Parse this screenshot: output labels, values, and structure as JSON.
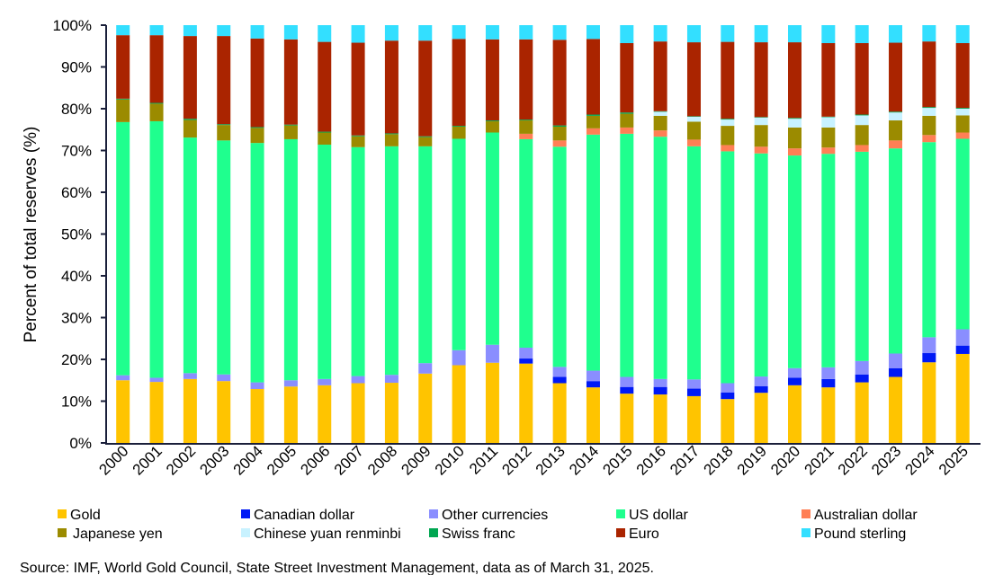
{
  "chart_data": {
    "type": "bar",
    "stacked": true,
    "title": "",
    "xlabel": "",
    "ylabel": "Percent of total reserves (%)",
    "ylim": [
      0,
      100
    ],
    "yticks": [
      "0%",
      "10%",
      "20%",
      "30%",
      "40%",
      "50%",
      "60%",
      "70%",
      "80%",
      "90%",
      "100%"
    ],
    "legend_position": "bottom",
    "categories": [
      "2000",
      "2001",
      "2002",
      "2003",
      "2004",
      "2005",
      "2006",
      "2007",
      "2008",
      "2009",
      "2010",
      "2011",
      "2012",
      "2013",
      "2014",
      "2015",
      "2016",
      "2017",
      "2018",
      "2019",
      "2020",
      "2021",
      "2022",
      "2023",
      "2024",
      "2025"
    ],
    "series": [
      {
        "name": "Gold",
        "color": "#FFC400",
        "values": [
          15.0,
          14.6,
          15.3,
          14.8,
          12.9,
          13.5,
          13.8,
          14.3,
          14.4,
          16.6,
          18.6,
          19.2,
          19.0,
          14.3,
          13.3,
          11.8,
          11.6,
          11.2,
          10.5,
          12.0,
          13.8,
          13.3,
          14.5,
          15.8,
          19.3,
          21.3
        ]
      },
      {
        "name": "Canadian dollar",
        "color": "#0019F5",
        "values": [
          0,
          0,
          0,
          0,
          0,
          0,
          0,
          0,
          0,
          0,
          0,
          0,
          1.2,
          1.5,
          1.5,
          1.6,
          1.8,
          1.8,
          1.6,
          1.6,
          1.8,
          2.0,
          1.9,
          2.1,
          2.2,
          2.0
        ]
      },
      {
        "name": "Other currencies",
        "color": "#8A8EFF",
        "values": [
          1.2,
          1.0,
          1.4,
          1.6,
          1.6,
          1.5,
          1.5,
          1.7,
          1.9,
          2.5,
          3.6,
          4.3,
          2.6,
          2.4,
          2.5,
          2.4,
          1.9,
          2.2,
          2.2,
          2.3,
          2.3,
          2.8,
          3.2,
          3.5,
          3.8,
          3.9
        ]
      },
      {
        "name": "US dollar",
        "color": "#1FFF8E",
        "values": [
          60.6,
          61.4,
          56.4,
          56.0,
          57.3,
          57.7,
          56.1,
          54.8,
          54.7,
          51.9,
          50.6,
          50.8,
          49.9,
          52.7,
          56.5,
          58.2,
          58.0,
          55.8,
          55.5,
          53.4,
          50.9,
          51.1,
          50.1,
          49.1,
          46.7,
          45.6
        ]
      },
      {
        "name": "Australian dollar",
        "color": "#FF7F55",
        "values": [
          0,
          0,
          0,
          0,
          0,
          0,
          0,
          0,
          0,
          0,
          0,
          0,
          1.3,
          1.5,
          1.5,
          1.5,
          1.5,
          1.6,
          1.5,
          1.6,
          1.7,
          1.5,
          1.6,
          1.9,
          1.7,
          1.5
        ]
      },
      {
        "name": "Japanese yen",
        "color": "#9B8B00",
        "values": [
          5.4,
          4.2,
          4.2,
          3.7,
          3.6,
          3.3,
          2.9,
          2.6,
          2.9,
          2.2,
          2.9,
          2.7,
          3.2,
          3.3,
          3.0,
          3.3,
          3.5,
          4.3,
          4.6,
          5.2,
          5.0,
          4.8,
          4.8,
          4.8,
          4.6,
          4.1
        ]
      },
      {
        "name": "Chinese yuan renminbi",
        "color": "#C8F2FF",
        "values": [
          0,
          0,
          0,
          0,
          0,
          0,
          0,
          0,
          0,
          0,
          0,
          0,
          0,
          0,
          0,
          0,
          1.0,
          1.2,
          1.5,
          1.8,
          2.1,
          2.5,
          2.3,
          1.9,
          1.9,
          1.6
        ]
      },
      {
        "name": "Swiss franc",
        "color": "#00A651",
        "values": [
          0.2,
          0.2,
          0.3,
          0.2,
          0.2,
          0.2,
          0.2,
          0.2,
          0.2,
          0.2,
          0.2,
          0.2,
          0.2,
          0.3,
          0.3,
          0.3,
          0.1,
          0.1,
          0.2,
          0.1,
          0.2,
          0.1,
          0.2,
          0.2,
          0.2,
          0.2
        ]
      },
      {
        "name": "Euro",
        "color": "#AA2400",
        "values": [
          15.2,
          16.2,
          19.8,
          21.1,
          21.2,
          20.4,
          21.5,
          22.2,
          22.2,
          22.9,
          20.8,
          19.4,
          19.2,
          20.5,
          18.1,
          16.6,
          16.7,
          17.7,
          18.4,
          17.9,
          18.1,
          17.6,
          17.1,
          16.5,
          15.7,
          15.5
        ]
      },
      {
        "name": "Pound sterling",
        "color": "#33DFFF",
        "values": [
          2.4,
          2.4,
          2.6,
          2.6,
          3.2,
          3.4,
          4.0,
          4.2,
          3.7,
          3.7,
          3.3,
          3.4,
          3.4,
          3.5,
          3.3,
          4.3,
          3.9,
          4.1,
          4.0,
          4.1,
          4.1,
          4.3,
          4.3,
          4.2,
          3.9,
          4.3
        ]
      }
    ],
    "legend_order": [
      0,
      1,
      2,
      3,
      4,
      5,
      6,
      7,
      8,
      9
    ]
  },
  "source": "Source: IMF, World Gold Council,  State Street Investment Management, data as of March 31, 2025."
}
